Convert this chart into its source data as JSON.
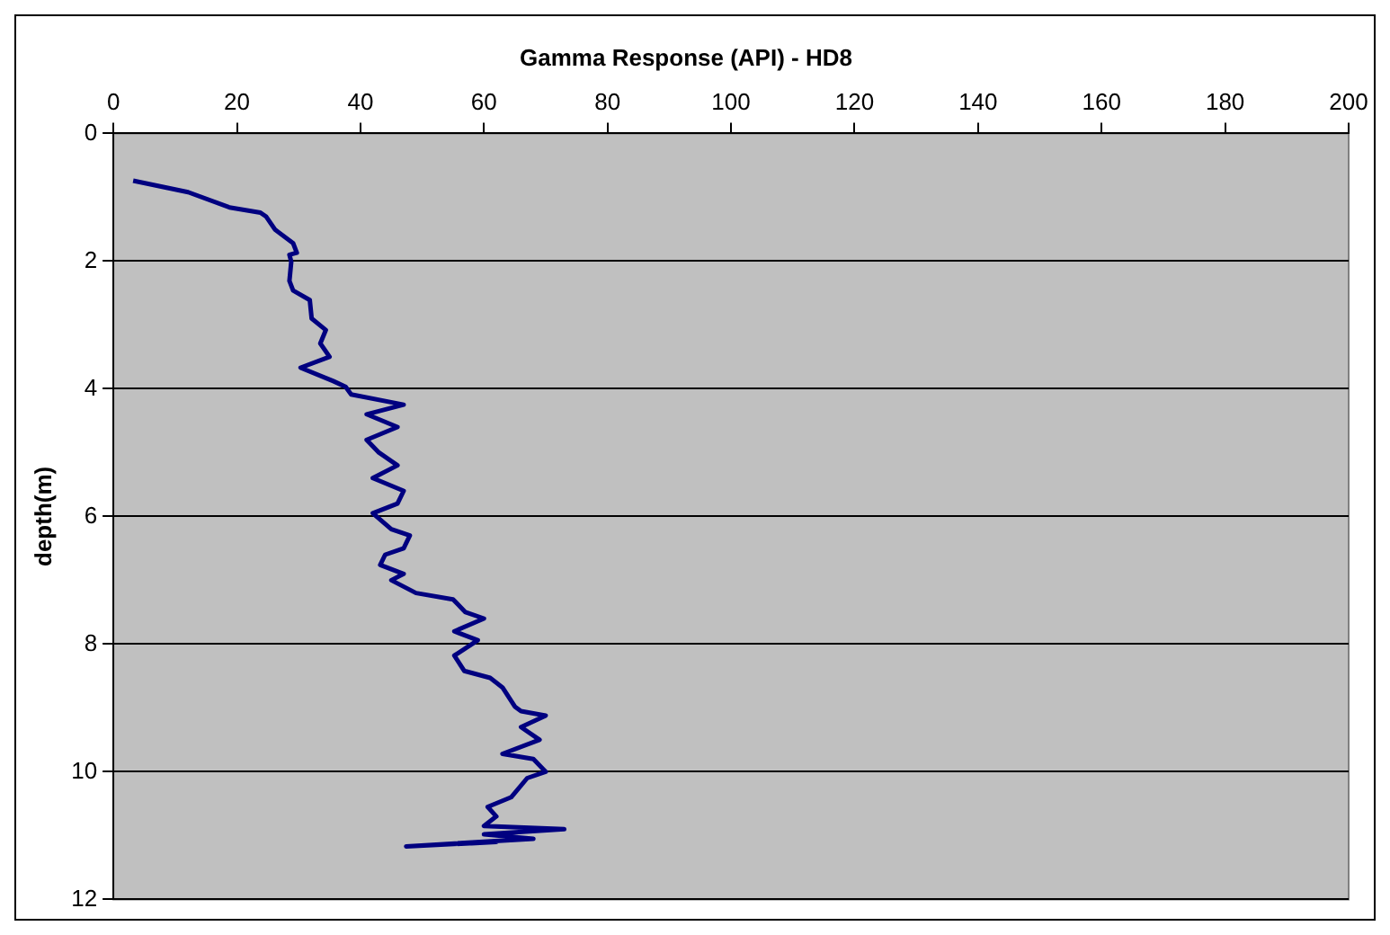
{
  "chart_data": {
    "type": "line",
    "title": "Gamma Response (API) - HD8",
    "ylabel": "depth(m)",
    "xlim": [
      0,
      200
    ],
    "xticks": [
      0,
      20,
      40,
      60,
      80,
      100,
      120,
      140,
      160,
      180,
      200
    ],
    "ylim": [
      12,
      0
    ],
    "yticks": [
      0,
      2,
      4,
      6,
      8,
      10,
      12
    ],
    "grid": "y",
    "legend": false,
    "marker": "none",
    "line_style": "solid",
    "series": [
      {
        "color": "#000080",
        "x": [
          3.2,
          12.1,
          18.8,
          23.8,
          24.7,
          26.2,
          29.1,
          29.7,
          28.5,
          28.8,
          28.5,
          29.1,
          31.8,
          32.1,
          34.4,
          33.5,
          35,
          30.3,
          35.6,
          37.6,
          38.5,
          47,
          41,
          46,
          41,
          43,
          46,
          42,
          47,
          46,
          42,
          45,
          48,
          47,
          44,
          43.2,
          47,
          45,
          49,
          55,
          57,
          60,
          55.2,
          59,
          55.2,
          56.8,
          61,
          63,
          65,
          66,
          70,
          66,
          69,
          63,
          68,
          70,
          67,
          64.4,
          60.6,
          62,
          60,
          73,
          60,
          68,
          47.4,
          62,
          58
        ],
        "values": [
          0.74,
          0.92,
          1.16,
          1.24,
          1.3,
          1.51,
          1.72,
          1.87,
          1.9,
          2.01,
          2.31,
          2.46,
          2.61,
          2.9,
          3.08,
          3.29,
          3.5,
          3.67,
          3.88,
          3.97,
          4.09,
          4.25,
          4.4,
          4.6,
          4.8,
          5,
          5.2,
          5.4,
          5.6,
          5.8,
          5.95,
          6.2,
          6.3,
          6.5,
          6.6,
          6.76,
          6.9,
          7,
          7.2,
          7.3,
          7.5,
          7.6,
          7.8,
          7.94,
          8.18,
          8.42,
          8.53,
          8.68,
          8.98,
          9.05,
          9.12,
          9.3,
          9.5,
          9.72,
          9.8,
          10,
          10.1,
          10.4,
          10.55,
          10.7,
          10.85,
          10.9,
          10.98,
          11.05,
          11.17,
          11.1,
          11.12
        ]
      }
    ]
  }
}
